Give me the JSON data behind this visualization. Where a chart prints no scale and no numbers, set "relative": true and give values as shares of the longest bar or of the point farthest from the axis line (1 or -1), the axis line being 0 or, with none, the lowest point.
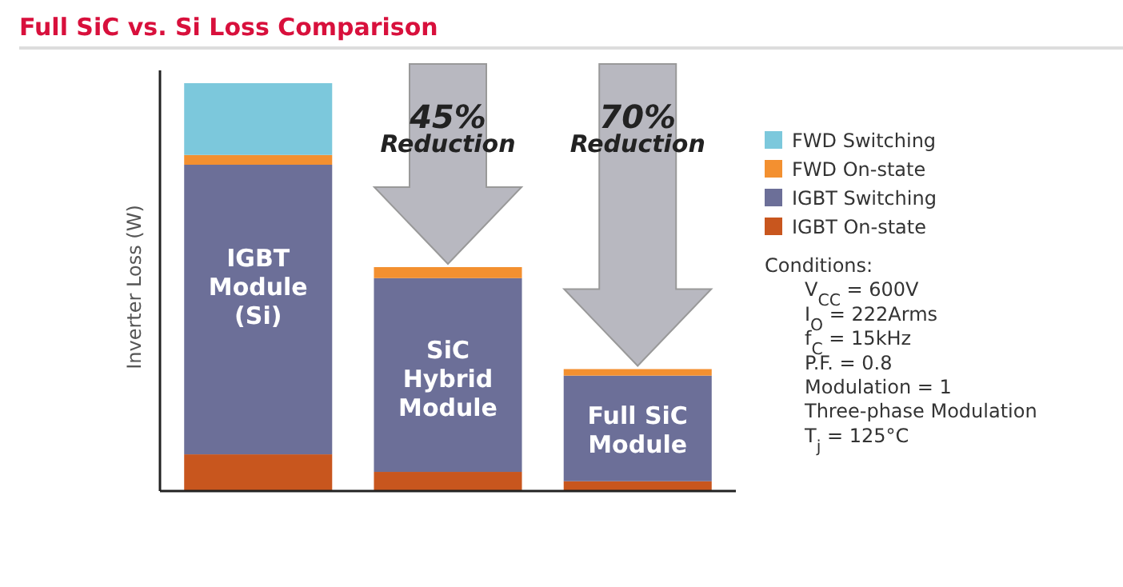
{
  "chart_data": {
    "type": "bar",
    "title": "Full SiC vs. Si Loss Comparison",
    "ylabel": "Inverter Loss (W)",
    "relative": true,
    "stacked": true,
    "legend": "right",
    "categories": [
      "IGBT Module (Si)",
      "SiC Hybrid Module",
      "Full SiC Module"
    ],
    "series": [
      {
        "name": "IGBT On-state",
        "color": "#c8561e",
        "values": [
          0.09,
          0.047,
          0.024
        ]
      },
      {
        "name": "IGBT Switching",
        "color": "#6c6f98",
        "values": [
          0.71,
          0.475,
          0.259
        ]
      },
      {
        "name": "FWD On-state",
        "color": "#f39030",
        "values": [
          0.024,
          0.027,
          0.016
        ]
      },
      {
        "name": "FWD Switching",
        "color": "#7cc8dc",
        "values": [
          0.176,
          0,
          0
        ]
      }
    ],
    "annotations": [
      "45% Reduction",
      "70% Reduction",
      "Conditions:",
      "V$_{CC}$ = 600V",
      "I$_{O}$ = 222Arms",
      "f$_{C}$ = 15kHz",
      "P.F. = 0.8",
      "Modulation = 1",
      "Three-phase Modulation",
      "T$_{j}$ = 125°C"
    ]
  }
}
